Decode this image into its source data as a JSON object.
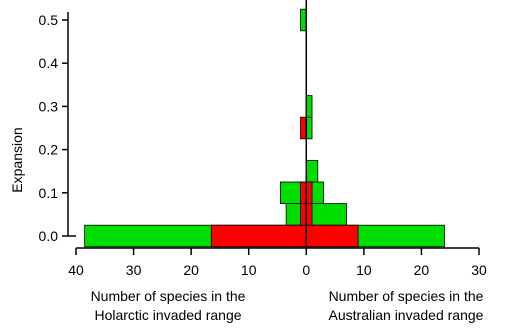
{
  "chart_data": {
    "type": "bar",
    "orientation": "horizontal",
    "layout": "back-to-back histogram",
    "ylabel": "Expansion",
    "y_ticks": [
      "0.0",
      "0.1",
      "0.2",
      "0.3",
      "0.4",
      "0.5"
    ],
    "ylim": [
      0.0,
      0.5
    ],
    "x_ticks": [
      "40",
      "30",
      "20",
      "10",
      "0",
      "10",
      "20",
      "30"
    ],
    "x_tick_values": [
      -40,
      -30,
      -20,
      -10,
      0,
      10,
      20,
      30
    ],
    "xlim": [
      -40,
      30
    ],
    "left_label": [
      "Number of species in the",
      "Holarctic invaded range"
    ],
    "right_label": [
      "Number of species in the",
      "Australian invaded range"
    ],
    "colors": {
      "green": "#00dd00",
      "red": "#ff0000",
      "axis": "#000000"
    },
    "bin_width": 0.05,
    "series": [
      {
        "color": "green",
        "bars": [
          {
            "bin": 0.0,
            "left": 38.5,
            "right": 24
          },
          {
            "bin": 0.05,
            "left": 3.5,
            "right": 7
          },
          {
            "bin": 0.1,
            "left": 4.5,
            "right": 3
          },
          {
            "bin": 0.15,
            "left": 0,
            "right": 2
          },
          {
            "bin": 0.25,
            "left": 0,
            "right": 1
          },
          {
            "bin": 0.3,
            "left": 0,
            "right": 1
          },
          {
            "bin": 0.5,
            "left": 1,
            "right": 0
          }
        ]
      },
      {
        "color": "red",
        "bars": [
          {
            "bin": 0.0,
            "left": 16.5,
            "right": 9
          },
          {
            "bin": 0.05,
            "left": 1,
            "right": 1
          },
          {
            "bin": 0.1,
            "left": 1,
            "right": 1
          },
          {
            "bin": 0.25,
            "left": 1,
            "right": 0
          }
        ]
      }
    ]
  }
}
